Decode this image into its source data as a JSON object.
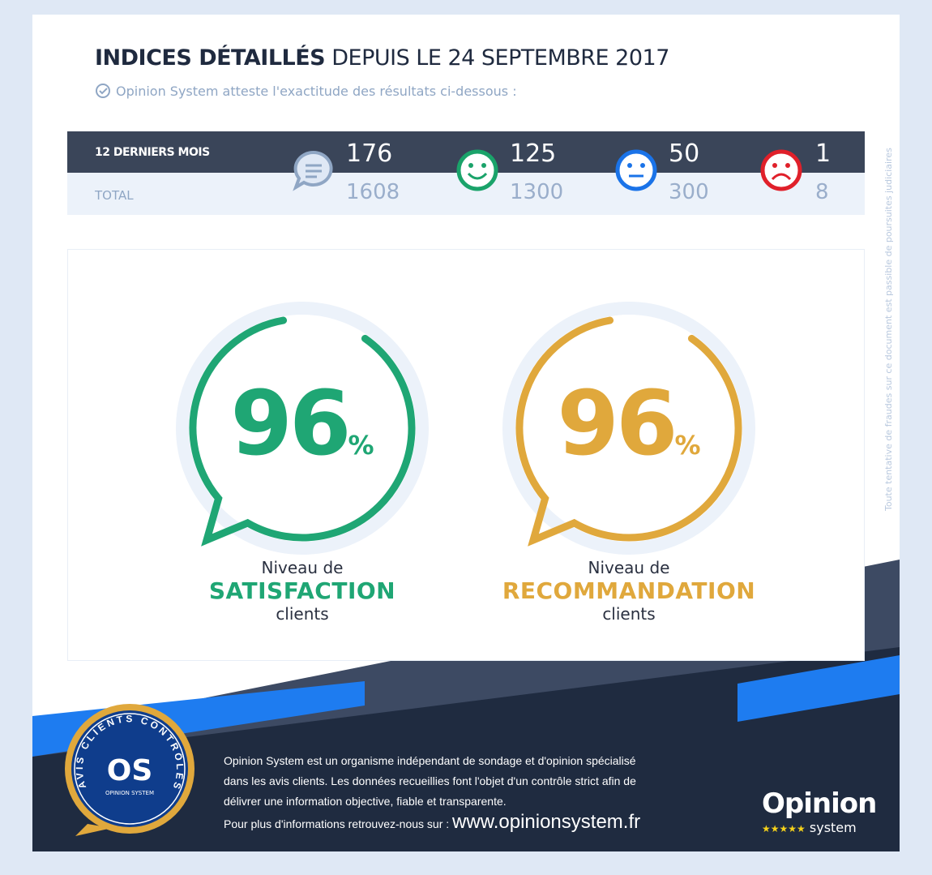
{
  "header": {
    "title_bold": "INDICES DÉTAILLÉS",
    "title_rest": "DEPUIS LE 24 SEPTEMBRE 2017",
    "subtitle": "Opinion System atteste l'exactitude des résultats ci-dessous :"
  },
  "stats": {
    "row1_label": "12 DERNIERS MOIS",
    "row2_label": "TOTAL",
    "items": [
      {
        "icon": "speech-bubble-icon",
        "last12": "176",
        "total": "1608",
        "color": "#8fa6c4"
      },
      {
        "icon": "happy-face-icon",
        "last12": "125",
        "total": "1300",
        "color": "#1aa36a"
      },
      {
        "icon": "neutral-face-icon",
        "last12": "50",
        "total": "300",
        "color": "#1a73e8"
      },
      {
        "icon": "sad-face-icon",
        "last12": "1",
        "total": "8",
        "color": "#e0202a"
      }
    ]
  },
  "gauges": [
    {
      "value": "96",
      "unit": "%",
      "percent": 96,
      "line1": "Niveau de",
      "line2": "SATISFACTION",
      "line3": "clients",
      "color": "#1fa674"
    },
    {
      "value": "96",
      "unit": "%",
      "percent": 96,
      "line1": "Niveau de",
      "line2": "RECOMMANDATION",
      "line3": "clients",
      "color": "#e0a83c"
    }
  ],
  "side_notice": "Toute tentative de fraudes sur ce document est passible de poursuites judiciaires",
  "footer": {
    "text1": "Opinion System est un organisme indépendant de sondage et d'opinion spécialisé",
    "text2": "dans les avis clients. Les données recueillies font l'objet d'un contrôle strict afin de",
    "text3": "délivrer une information objective, fiable et transparente.",
    "more": "Pour plus d'informations retrouvez-nous sur :",
    "url": "www.opinionsystem.fr"
  },
  "badge": {
    "arc_text": "AVIS CLIENTS CONTRÔLÉS",
    "mono": "OS",
    "name": "OPINION SYSTEM"
  },
  "logo": {
    "word": "Opinion",
    "sub": "system",
    "stars": "★★★★★"
  }
}
